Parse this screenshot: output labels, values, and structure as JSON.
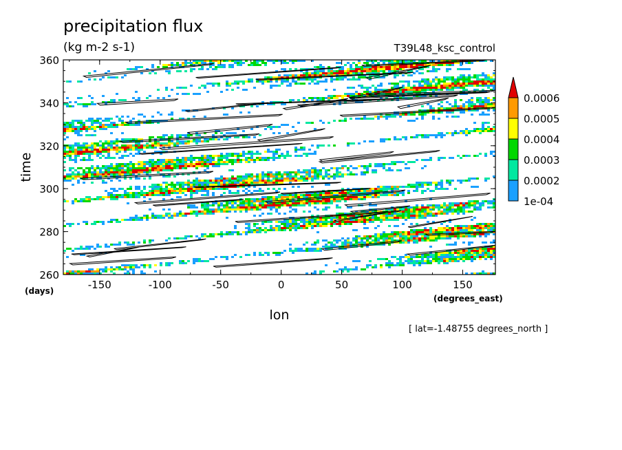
{
  "chart_data": {
    "type": "heatmap",
    "title": "precipitation flux",
    "units": "(kg m-2 s-1)",
    "experiment": "T39L48_ksc_control",
    "xlabel": "lon",
    "xunits": "(degrees_east)",
    "ylabel": "time",
    "yunits": "(days)",
    "xlim": [
      -180,
      177
    ],
    "ylim": [
      260,
      360
    ],
    "xticks": [
      -150,
      -100,
      -50,
      0,
      50,
      100,
      150
    ],
    "yticks": [
      260,
      280,
      300,
      320,
      340,
      360
    ],
    "xtick_labels": [
      "-150",
      "-100",
      "-50",
      "0",
      "50",
      "100",
      "150"
    ],
    "ytick_labels": [
      "260",
      "280",
      "300",
      "320",
      "340",
      "360"
    ],
    "annotation": "[ lat=-1.48755 degrees_north ]",
    "colorbar": {
      "levels": [
        0.0001,
        0.0002,
        0.0003,
        0.0004,
        0.0005,
        0.0006
      ],
      "labels": [
        "1e-04",
        "0.0002",
        "0.0003",
        "0.0004",
        "0.0005",
        "0.0006"
      ],
      "colors": [
        "#1aa0ff",
        "#00e8a0",
        "#00d800",
        "#ffff00",
        "#ff9a00",
        "#e00000"
      ],
      "extend": "max"
    },
    "contours": "black contour lines overlaid on filled field"
  }
}
